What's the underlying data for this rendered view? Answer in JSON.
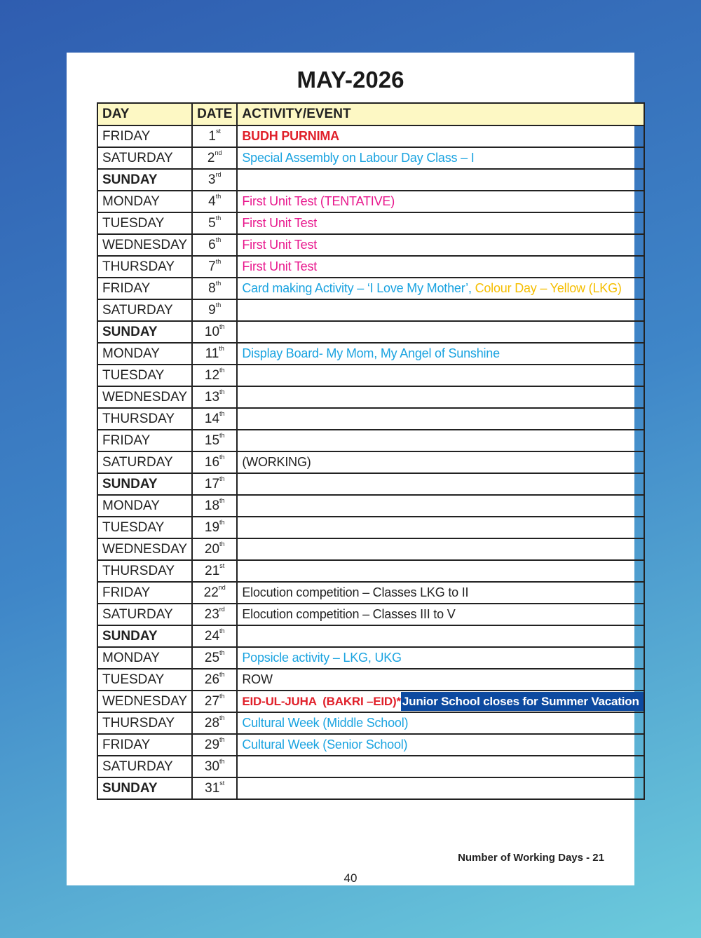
{
  "title": "MAY-2026",
  "headers": {
    "day": "DAY",
    "date": "DATE",
    "activity": "ACTIVITY/EVENT"
  },
  "colors": {
    "red": "#e0202a",
    "cyan": "#1aa3e0",
    "magenta": "#e8168c",
    "yellow": "#f5be00",
    "black": "#222222",
    "highlight_bg": "#0d4aa0",
    "header_bg": "#fdf8c4"
  },
  "rows": [
    {
      "day": "FRIDAY",
      "date": "1",
      "suffix": "st",
      "activity": [
        {
          "text": "BUDH PURNIMA",
          "color": "red",
          "bold": true
        }
      ]
    },
    {
      "day": "SATURDAY",
      "date": "2",
      "suffix": "nd",
      "activity": [
        {
          "text": "Special Assembly on Labour Day Class – I",
          "color": "cyan"
        }
      ]
    },
    {
      "day": "SUNDAY",
      "date": "3",
      "suffix": "rd",
      "bold": true,
      "activity": []
    },
    {
      "day": "MONDAY",
      "date": "4",
      "suffix": "th",
      "activity": [
        {
          "text": "First Unit Test (TENTATIVE)",
          "color": "magenta"
        }
      ]
    },
    {
      "day": "TUESDAY",
      "date": "5",
      "suffix": "th",
      "activity": [
        {
          "text": "First Unit Test",
          "color": "magenta"
        }
      ]
    },
    {
      "day": "WEDNESDAY",
      "date": "6",
      "suffix": "th",
      "activity": [
        {
          "text": "First Unit Test",
          "color": "magenta"
        }
      ]
    },
    {
      "day": "THURSDAY",
      "date": "7",
      "suffix": "th",
      "activity": [
        {
          "text": "First Unit Test",
          "color": "magenta"
        }
      ]
    },
    {
      "day": "FRIDAY",
      "date": "8",
      "suffix": "th",
      "activity": [
        {
          "text": "Card making Activity – ‘I Love My Mother’, ",
          "color": "cyan"
        },
        {
          "text": "Colour Day – Yellow (LKG)",
          "color": "yellow"
        }
      ]
    },
    {
      "day": "SATURDAY",
      "date": "9",
      "suffix": "th",
      "activity": []
    },
    {
      "day": "SUNDAY",
      "date": "10",
      "suffix": "th",
      "bold": true,
      "activity": []
    },
    {
      "day": "MONDAY",
      "date": "11",
      "suffix": "th",
      "activity": [
        {
          "text": "Display Board- My Mom, My Angel of Sunshine",
          "color": "cyan"
        }
      ]
    },
    {
      "day": "TUESDAY",
      "date": "12",
      "suffix": "th",
      "activity": []
    },
    {
      "day": "WEDNESDAY",
      "date": "13",
      "suffix": "th",
      "activity": []
    },
    {
      "day": "THURSDAY",
      "date": "14",
      "suffix": "th",
      "activity": []
    },
    {
      "day": "FRIDAY",
      "date": "15",
      "suffix": "th",
      "activity": []
    },
    {
      "day": "SATURDAY",
      "date": "16",
      "suffix": "th",
      "activity": [
        {
          "text": "(WORKING)",
          "color": "black"
        }
      ]
    },
    {
      "day": "SUNDAY",
      "date": "17",
      "suffix": "th",
      "bold": true,
      "activity": []
    },
    {
      "day": "MONDAY",
      "date": "18",
      "suffix": "th",
      "activity": []
    },
    {
      "day": "TUESDAY",
      "date": "19",
      "suffix": "th",
      "activity": []
    },
    {
      "day": "WEDNESDAY",
      "date": "20",
      "suffix": "th",
      "activity": []
    },
    {
      "day": "THURSDAY",
      "date": "21",
      "suffix": "st",
      "activity": []
    },
    {
      "day": "FRIDAY",
      "date": "22",
      "suffix": "nd",
      "activity": [
        {
          "text": "Elocution competition – Classes LKG to II",
          "color": "black"
        }
      ]
    },
    {
      "day": "SATURDAY",
      "date": "23",
      "suffix": "rd",
      "activity": [
        {
          "text": "Elocution competition – Classes III to V",
          "color": "black"
        }
      ]
    },
    {
      "day": "SUNDAY",
      "date": "24",
      "suffix": "th",
      "bold": true,
      "activity": []
    },
    {
      "day": "MONDAY",
      "date": "25",
      "suffix": "th",
      "activity": [
        {
          "text": "Popsicle activity – LKG, UKG",
          "color": "cyan"
        }
      ]
    },
    {
      "day": "TUESDAY",
      "date": "26",
      "suffix": "th",
      "activity": [
        {
          "text": "ROW",
          "color": "black"
        }
      ]
    },
    {
      "day": "WEDNESDAY",
      "date": "27",
      "suffix": "th",
      "activity": [
        {
          "text": "EID-UL-JUHA  (BAKRI –EID)*",
          "color": "red",
          "bold": true
        },
        {
          "text": "Junior School closes for Summer Vacation",
          "color": "white",
          "bold": true,
          "highlight": true
        }
      ]
    },
    {
      "day": "THURSDAY",
      "date": "28",
      "suffix": "th",
      "activity": [
        {
          "text": "Cultural Week (Middle School)",
          "color": "cyan"
        }
      ]
    },
    {
      "day": "FRIDAY",
      "date": "29",
      "suffix": "th",
      "activity": [
        {
          "text": "Cultural Week (Senior School)",
          "color": "cyan"
        }
      ]
    },
    {
      "day": "SATURDAY",
      "date": "30",
      "suffix": "th",
      "activity": []
    },
    {
      "day": "SUNDAY",
      "date": "31",
      "suffix": "st",
      "bold": true,
      "activity": []
    }
  ],
  "footer": "Number of Working Days - 21",
  "page_number": "40"
}
